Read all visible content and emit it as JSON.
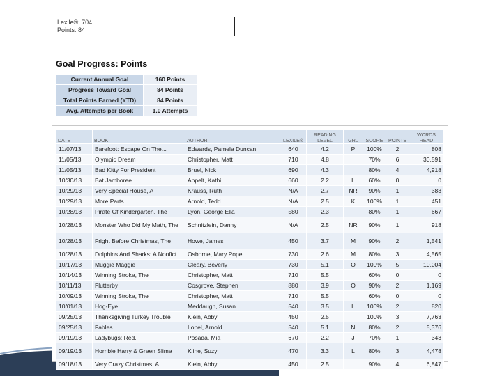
{
  "header": {
    "lexile_label": "Lexile®:",
    "lexile_value": "704",
    "points_label": "Points:",
    "points_value": "84"
  },
  "goal_progress": {
    "title": "Goal Progress: Points",
    "rows": [
      {
        "label": "Current Annual Goal",
        "value": "160 Points"
      },
      {
        "label": "Progress Toward Goal",
        "value": "84 Points"
      },
      {
        "label": "Total Points Earned (YTD)",
        "value": "84 Points"
      },
      {
        "label": "Avg. Attempts per Book",
        "value": "1.0 Attempts"
      }
    ]
  },
  "reading_log": {
    "headers": {
      "date": "DATE",
      "book": "BOOK",
      "author": "AUTHOR",
      "lexile": "LEXILE®",
      "reading_level_1": "READING",
      "reading_level_2": "LEVEL",
      "grl": "GRL",
      "score": "SCORE",
      "points": "POINTS",
      "words_read_1": "WORDS",
      "words_read_2": "READ"
    },
    "rows": [
      [
        "11/07/13",
        "Barefoot: Escape On The...",
        "Edwards, Pamela Duncan",
        "640",
        "4.2",
        "P",
        "100%",
        "2",
        "808"
      ],
      [
        "11/05/13",
        "Olympic Dream",
        "Christopher, Matt",
        "710",
        "4.8",
        "",
        "70%",
        "6",
        "30,591"
      ],
      [
        "11/05/13",
        "Bad Kitty For President",
        "Bruel, Nick",
        "690",
        "4.3",
        "",
        "80%",
        "4",
        "4,918"
      ],
      [
        "10/30/13",
        "Bat Jamboree",
        "Appelt, Kathi",
        "660",
        "2.2",
        "L",
        "60%",
        "0",
        "0"
      ],
      [
        "10/29/13",
        "Very Special House, A",
        "Krauss, Ruth",
        "N/A",
        "2.7",
        "NR",
        "90%",
        "1",
        "383"
      ],
      [
        "10/29/13",
        "More Parts",
        "Arnold, Tedd",
        "N/A",
        "2.5",
        "K",
        "100%",
        "1",
        "451"
      ],
      [
        "10/28/13",
        "Pirate Of Kindergarten, The",
        "Lyon, George Ella",
        "580",
        "2.3",
        "",
        "80%",
        "1",
        "667"
      ],
      [
        "10/28/13",
        "Monster Who Did My Math, The",
        "Schnitzlein, Danny",
        "N/A",
        "2.5",
        "NR",
        "90%",
        "1",
        "918"
      ],
      [
        "10/28/13",
        "Fright Before Christmas, The",
        "Howe, James",
        "450",
        "3.7",
        "M",
        "90%",
        "2",
        "1,541"
      ],
      [
        "10/28/13",
        "Dolphins And Sharks: A Nonfict",
        "Osborne, Mary Pope",
        "730",
        "2.6",
        "M",
        "80%",
        "3",
        "4,565"
      ],
      [
        "10/17/13",
        "Muggie Maggie",
        "Cleary, Beverly",
        "730",
        "5.1",
        "O",
        "100%",
        "5",
        "10,004"
      ],
      [
        "10/14/13",
        "Winning Stroke, The",
        "Christopher, Matt",
        "710",
        "5.5",
        "",
        "60%",
        "0",
        "0"
      ],
      [
        "10/11/13",
        "Flutterby",
        "Cosgrove, Stephen",
        "880",
        "3.9",
        "O",
        "90%",
        "2",
        "1,169"
      ],
      [
        "10/09/13",
        "Winning Stroke, The",
        "Christopher, Matt",
        "710",
        "5.5",
        "",
        "60%",
        "0",
        "0"
      ],
      [
        "10/01/13",
        "Hog-Eye",
        "Meddaugh, Susan",
        "540",
        "3.5",
        "L",
        "100%",
        "2",
        "820"
      ],
      [
        "09/25/13",
        "Thanksgiving Turkey Trouble",
        "Klein, Abby",
        "450",
        "2.5",
        "",
        "100%",
        "3",
        "7,763"
      ],
      [
        "09/25/13",
        "Fables",
        "Lobel, Arnold",
        "540",
        "5.1",
        "N",
        "80%",
        "2",
        "5,376"
      ],
      [
        "09/19/13",
        "Ladybugs: Red,",
        "Posada, Mia",
        "670",
        "2.2",
        "J",
        "70%",
        "1",
        "343"
      ],
      [
        "09/19/13",
        "Horrible Harry & Green Slime",
        "Kline, Suzy",
        "470",
        "3.3",
        "L",
        "80%",
        "3",
        "4,478"
      ],
      [
        "09/18/13",
        "Very Crazy Christmas, A",
        "Klein, Abby",
        "450",
        "2.5",
        "",
        "90%",
        "4",
        "6,847"
      ]
    ]
  }
}
